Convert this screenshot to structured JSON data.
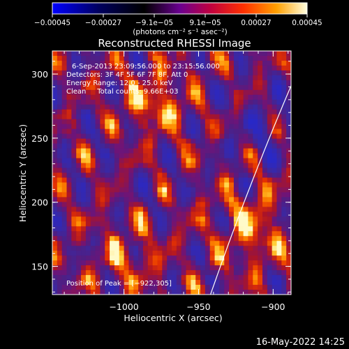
{
  "chart_data": {
    "type": "heatmap",
    "title": "Reconstructed RHESSI Image",
    "xlabel": "Heliocentric X (arcsec)",
    "ylabel": "Heliocentric Y (arcsec)",
    "xlim": [
      -1048,
      -888
    ],
    "ylim": [
      128,
      318
    ],
    "x_ticks": [
      {
        "value": -1000,
        "label": "−1000"
      },
      {
        "value": -950,
        "label": "−950"
      },
      {
        "value": -900,
        "label": "−900"
      }
    ],
    "y_ticks": [
      {
        "value": 150,
        "label": "150"
      },
      {
        "value": 200,
        "label": "200"
      },
      {
        "value": 250,
        "label": "250"
      },
      {
        "value": 300,
        "label": "300"
      }
    ],
    "colorbar": {
      "ticks": [
        "−0.00045",
        "−0.00027",
        "−9.1e−05",
        "9.1e−05",
        "0.00027",
        "0.00045"
      ],
      "unit_label": "(photons cm⁻² s⁻¹ asec⁻²)",
      "range": [
        -0.00045,
        0.00045
      ]
    },
    "annotations": [
      "6-Sep-2013 23:09:56.000 to 23:15:56.000",
      "Detectors: 3F 4F 5F 6F 7F 8F, Att 0",
      "Energy Range: 12.0 - 25.0 keV",
      "Clean     Total counts: 9.66E+03"
    ],
    "peak_label": "Position of Peak = [−922,305]",
    "peak_position": [
      -922,
      305
    ],
    "limb_visible": true,
    "colors": {
      "scale": [
        "#0000ff",
        "#000000",
        "#7a00a8",
        "#ff0000",
        "#ffb000",
        "#ffff80",
        "#ffffff"
      ]
    }
  },
  "footer": {
    "timestamp": "16-May-2022 14:25"
  }
}
